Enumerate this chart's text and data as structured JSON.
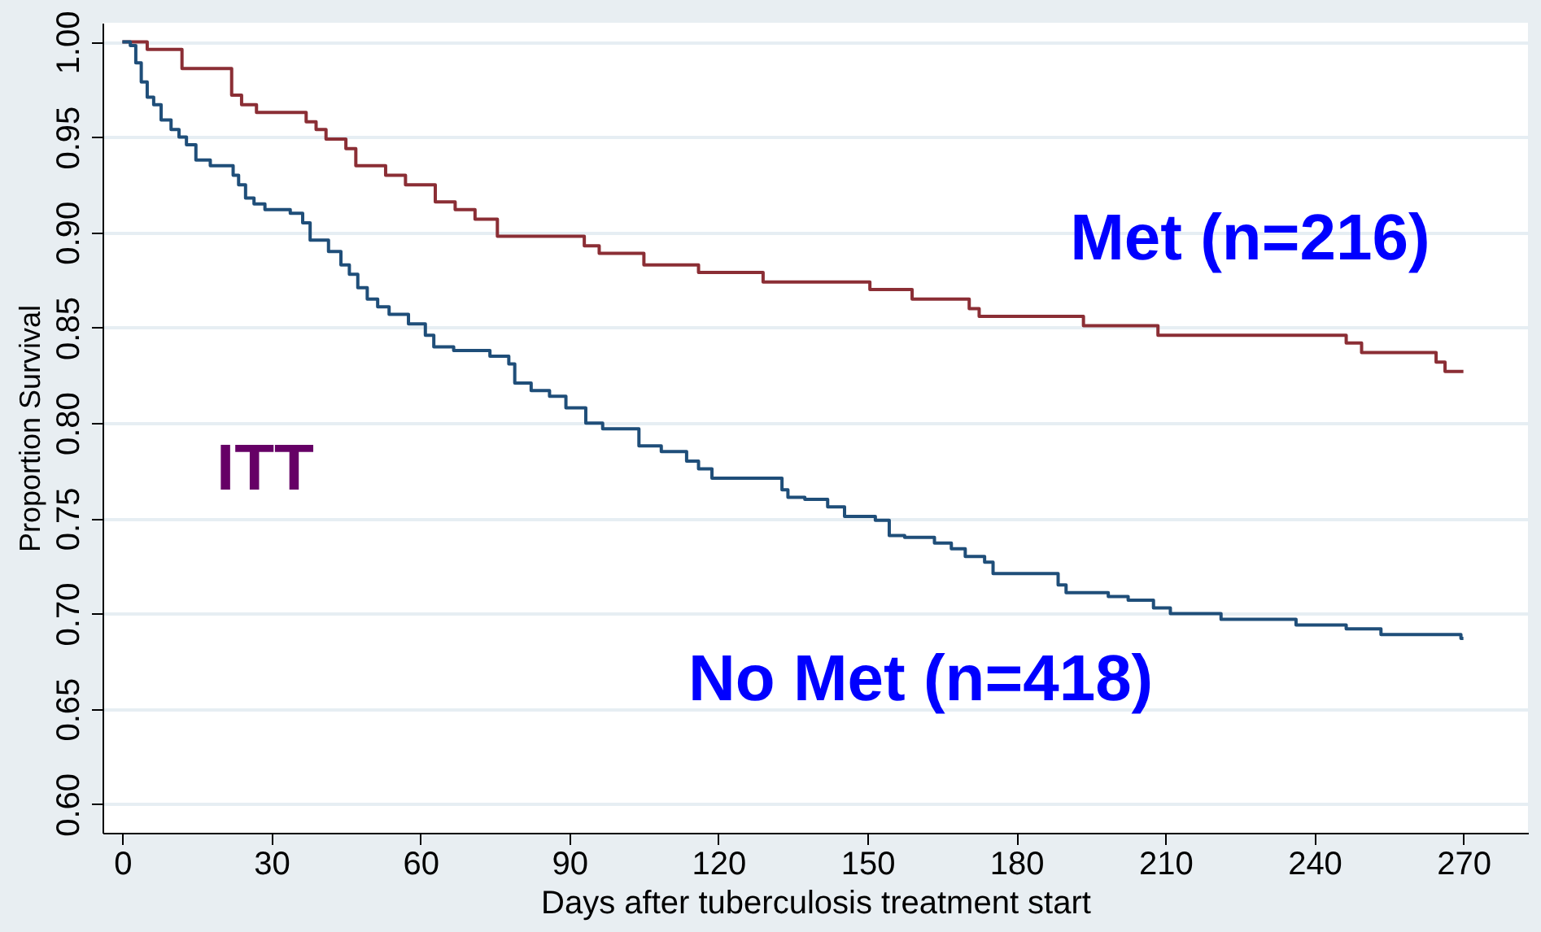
{
  "chart_data": {
    "type": "step",
    "xlabel": "Days after tuberculosis treatment start",
    "ylabel": "Proportion Survival",
    "xlim": [
      -4,
      283
    ],
    "ylim": [
      0.585,
      1.01
    ],
    "xticks": [
      0,
      30,
      60,
      90,
      120,
      150,
      180,
      210,
      240,
      270
    ],
    "yticks": [
      {
        "value": 0.6,
        "label": "0.60"
      },
      {
        "value": 0.65,
        "label": "0.65"
      },
      {
        "value": 0.7,
        "label": "0.70"
      },
      {
        "value": 0.75,
        "label": "0.75"
      },
      {
        "value": 0.8,
        "label": "0.80"
      },
      {
        "value": 0.85,
        "label": "0.85"
      },
      {
        "value": 0.9,
        "label": "0.90"
      },
      {
        "value": 0.95,
        "label": "0.95"
      },
      {
        "value": 1.0,
        "label": "1.00"
      }
    ],
    "grid": "y",
    "marker": "none",
    "line_style": "solid",
    "annotations": [
      "ITT"
    ],
    "series": [
      {
        "name": "Met (n=216)",
        "color": "#8b2e35",
        "x": [
          0,
          5,
          12,
          22,
          24,
          27,
          37,
          39,
          41,
          45,
          47,
          53,
          57,
          63,
          67,
          71,
          75.5,
          93,
          96,
          105,
          116,
          129,
          150.5,
          159,
          170.5,
          172.5,
          193.5,
          208.5,
          246.4,
          249.5,
          264.5,
          266.3,
          270
        ],
        "values": [
          1.0,
          0.996,
          0.986,
          0.972,
          0.967,
          0.963,
          0.958,
          0.954,
          0.949,
          0.944,
          0.935,
          0.93,
          0.925,
          0.916,
          0.912,
          0.907,
          0.898,
          0.893,
          0.889,
          0.883,
          0.879,
          0.874,
          0.87,
          0.865,
          0.86,
          0.856,
          0.851,
          0.846,
          0.842,
          0.837,
          0.832,
          0.827,
          0.827
        ]
      },
      {
        "name": "No Met (n=418)",
        "color": "#1f4e79",
        "x": [
          0,
          1.6,
          2.7,
          3.8,
          5,
          6.3,
          7.8,
          9.8,
          11.4,
          12.9,
          14.8,
          17.7,
          22.3,
          23.4,
          24.8,
          26.5,
          28.7,
          33.8,
          36.3,
          37.8,
          41.5,
          44,
          45.7,
          47.4,
          49.3,
          51.4,
          53.7,
          57.6,
          61,
          62.7,
          66.7,
          74,
          77.8,
          79,
          82.3,
          86,
          89.3,
          93.3,
          96.7,
          104,
          108.5,
          113.6,
          116,
          118.7,
          132.8,
          134,
          137.4,
          142,
          145.4,
          151.6,
          154.4,
          157.5,
          163.5,
          166.9,
          169.7,
          173.6,
          175.3,
          188.4,
          190,
          198.5,
          202.5,
          207.6,
          211,
          221.2,
          236.3,
          246.4,
          253.4,
          269.5,
          270
        ],
        "values": [
          1.0,
          0.998,
          0.989,
          0.979,
          0.971,
          0.967,
          0.959,
          0.954,
          0.95,
          0.946,
          0.938,
          0.935,
          0.93,
          0.925,
          0.918,
          0.915,
          0.912,
          0.91,
          0.905,
          0.896,
          0.89,
          0.883,
          0.878,
          0.871,
          0.865,
          0.861,
          0.857,
          0.852,
          0.846,
          0.84,
          0.838,
          0.835,
          0.831,
          0.821,
          0.817,
          0.814,
          0.808,
          0.8,
          0.797,
          0.788,
          0.785,
          0.78,
          0.776,
          0.771,
          0.765,
          0.761,
          0.76,
          0.756,
          0.751,
          0.749,
          0.741,
          0.74,
          0.737,
          0.734,
          0.73,
          0.727,
          0.721,
          0.715,
          0.711,
          0.709,
          0.707,
          0.703,
          0.7,
          0.697,
          0.694,
          0.692,
          0.689,
          0.687,
          0.687
        ]
      }
    ]
  }
}
